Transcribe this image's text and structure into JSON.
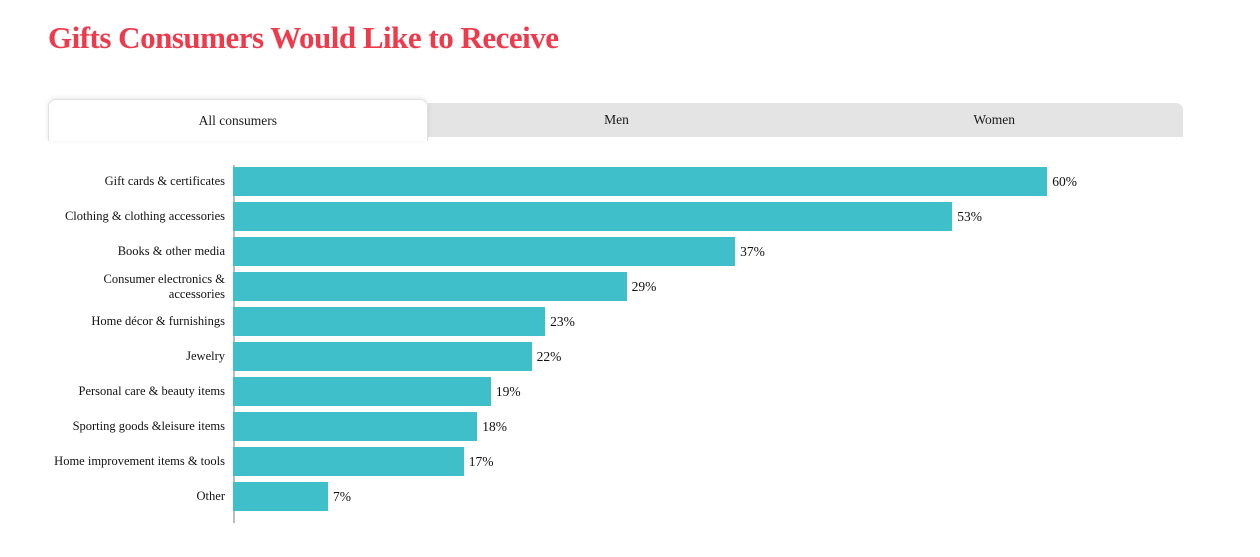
{
  "header": {
    "title": "Gifts Consumers Would Like to Receive"
  },
  "tabs": [
    {
      "label": "All consumers",
      "active": true
    },
    {
      "label": "Men",
      "active": false
    },
    {
      "label": "Women",
      "active": false
    }
  ],
  "colors": {
    "title_red": "#ee3a4b",
    "bar_teal": "#3fbfca",
    "tab_inactive_bg": "#e4e4e4",
    "axis_gray": "#bdbdbd"
  },
  "chart_data": {
    "type": "bar",
    "orientation": "horizontal",
    "title": "Gifts Consumers Would Like to Receive",
    "categories": [
      "Gift cards & certificates",
      "Clothing & clothing accessories",
      "Books & other media",
      "Consumer electronics & accessories",
      "Home décor & furnishings",
      "Jewelry",
      "Personal care & beauty items",
      "Sporting goods &leisure items",
      "Home improvement items & tools",
      "Other"
    ],
    "values": [
      60,
      53,
      37,
      29,
      23,
      22,
      19,
      18,
      17,
      7
    ],
    "value_suffix": "%",
    "value_labels": [
      "60%",
      "53%",
      "37%",
      "29%",
      "23%",
      "22%",
      "19%",
      "18%",
      "17%",
      "7%"
    ],
    "xlabel": "",
    "ylabel": "",
    "xlim": [
      0,
      70
    ],
    "grid": false,
    "legend": false,
    "bar_color": "#3fbfca"
  }
}
